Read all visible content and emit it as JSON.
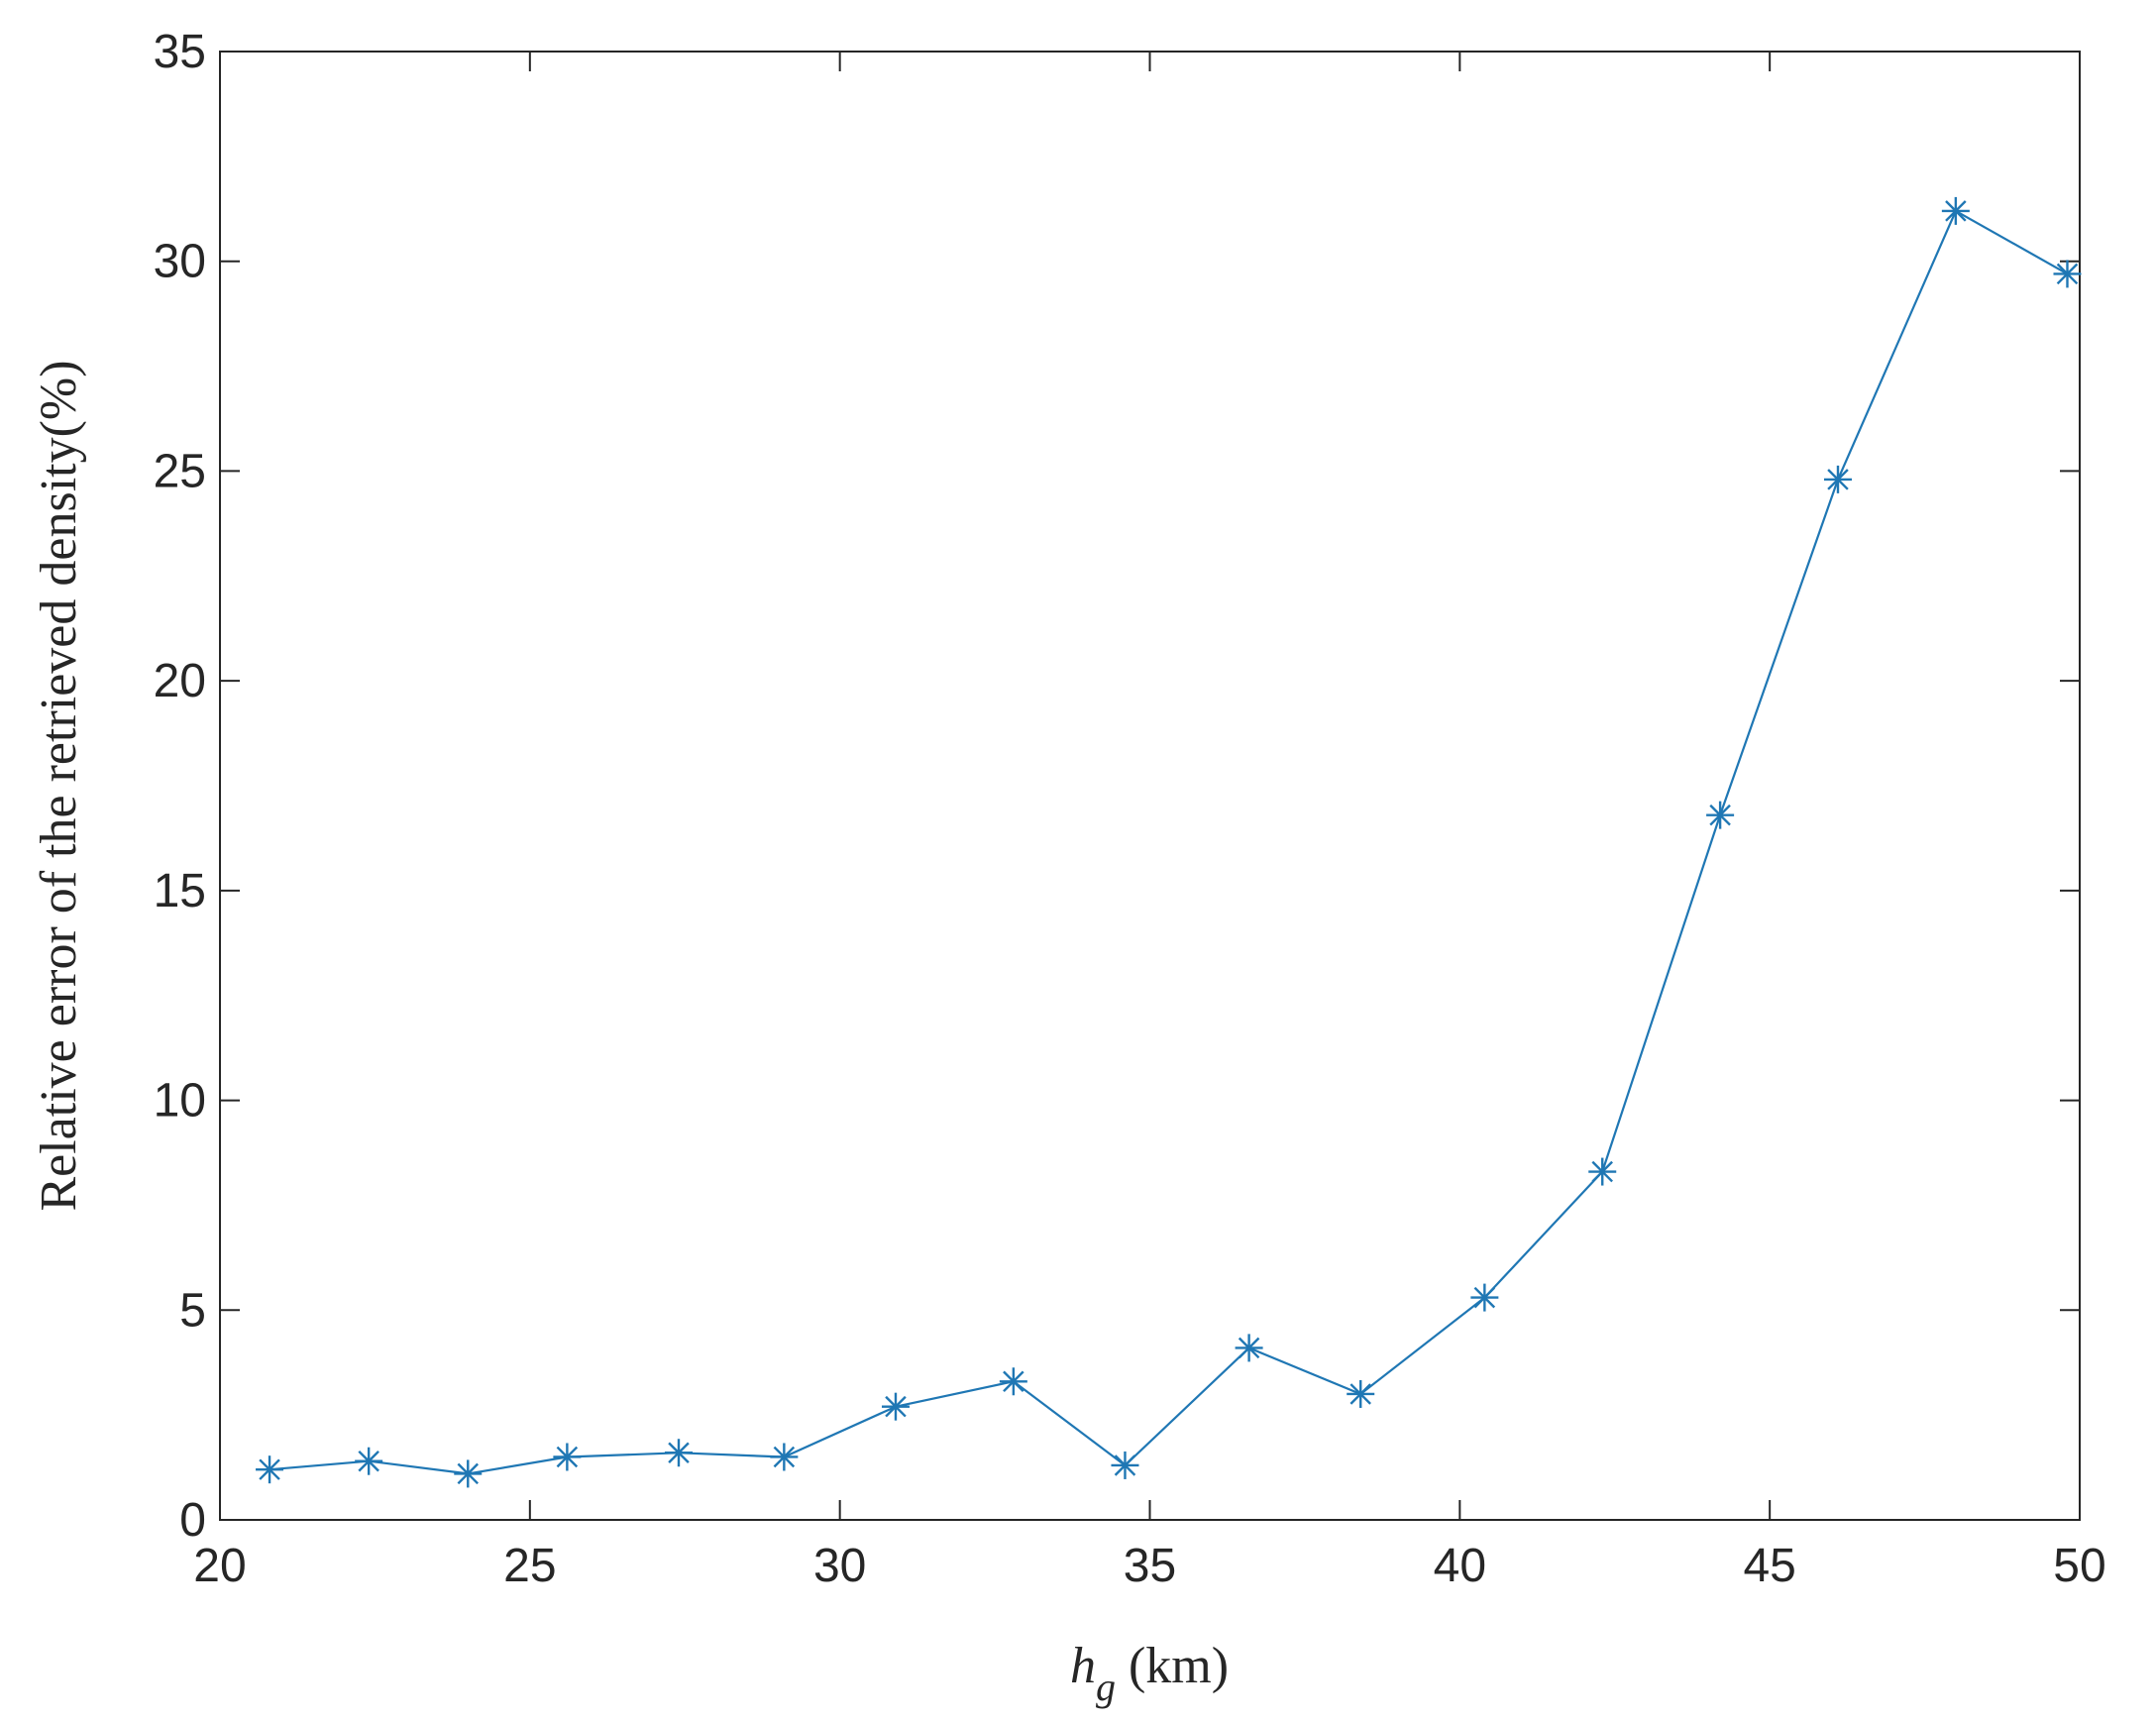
{
  "chart_data": {
    "type": "line",
    "title": "",
    "xlabel": "h",
    "xlabel_subscript": "g",
    "xlabel_unit": " (km)",
    "ylabel": "Relative error of the retrieved density(%)",
    "xlim": [
      20,
      50
    ],
    "ylim": [
      0,
      35
    ],
    "xticks": [
      20,
      25,
      30,
      35,
      40,
      45,
      50
    ],
    "yticks": [
      0,
      5,
      10,
      15,
      20,
      25,
      30,
      35
    ],
    "grid": false,
    "legend": "none",
    "series": [
      {
        "marker": "asterisk",
        "color": "#1f77b4",
        "x": [
          20.8,
          22.4,
          24.0,
          25.6,
          27.4,
          29.1,
          30.9,
          32.8,
          34.6,
          36.6,
          38.4,
          40.4,
          42.3,
          44.2,
          46.1,
          48.0,
          49.8
        ],
        "y": [
          1.2,
          1.4,
          1.1,
          1.5,
          1.6,
          1.5,
          2.7,
          3.3,
          1.3,
          4.1,
          3.0,
          5.3,
          8.3,
          16.8,
          24.8,
          31.2,
          29.7
        ]
      }
    ]
  }
}
